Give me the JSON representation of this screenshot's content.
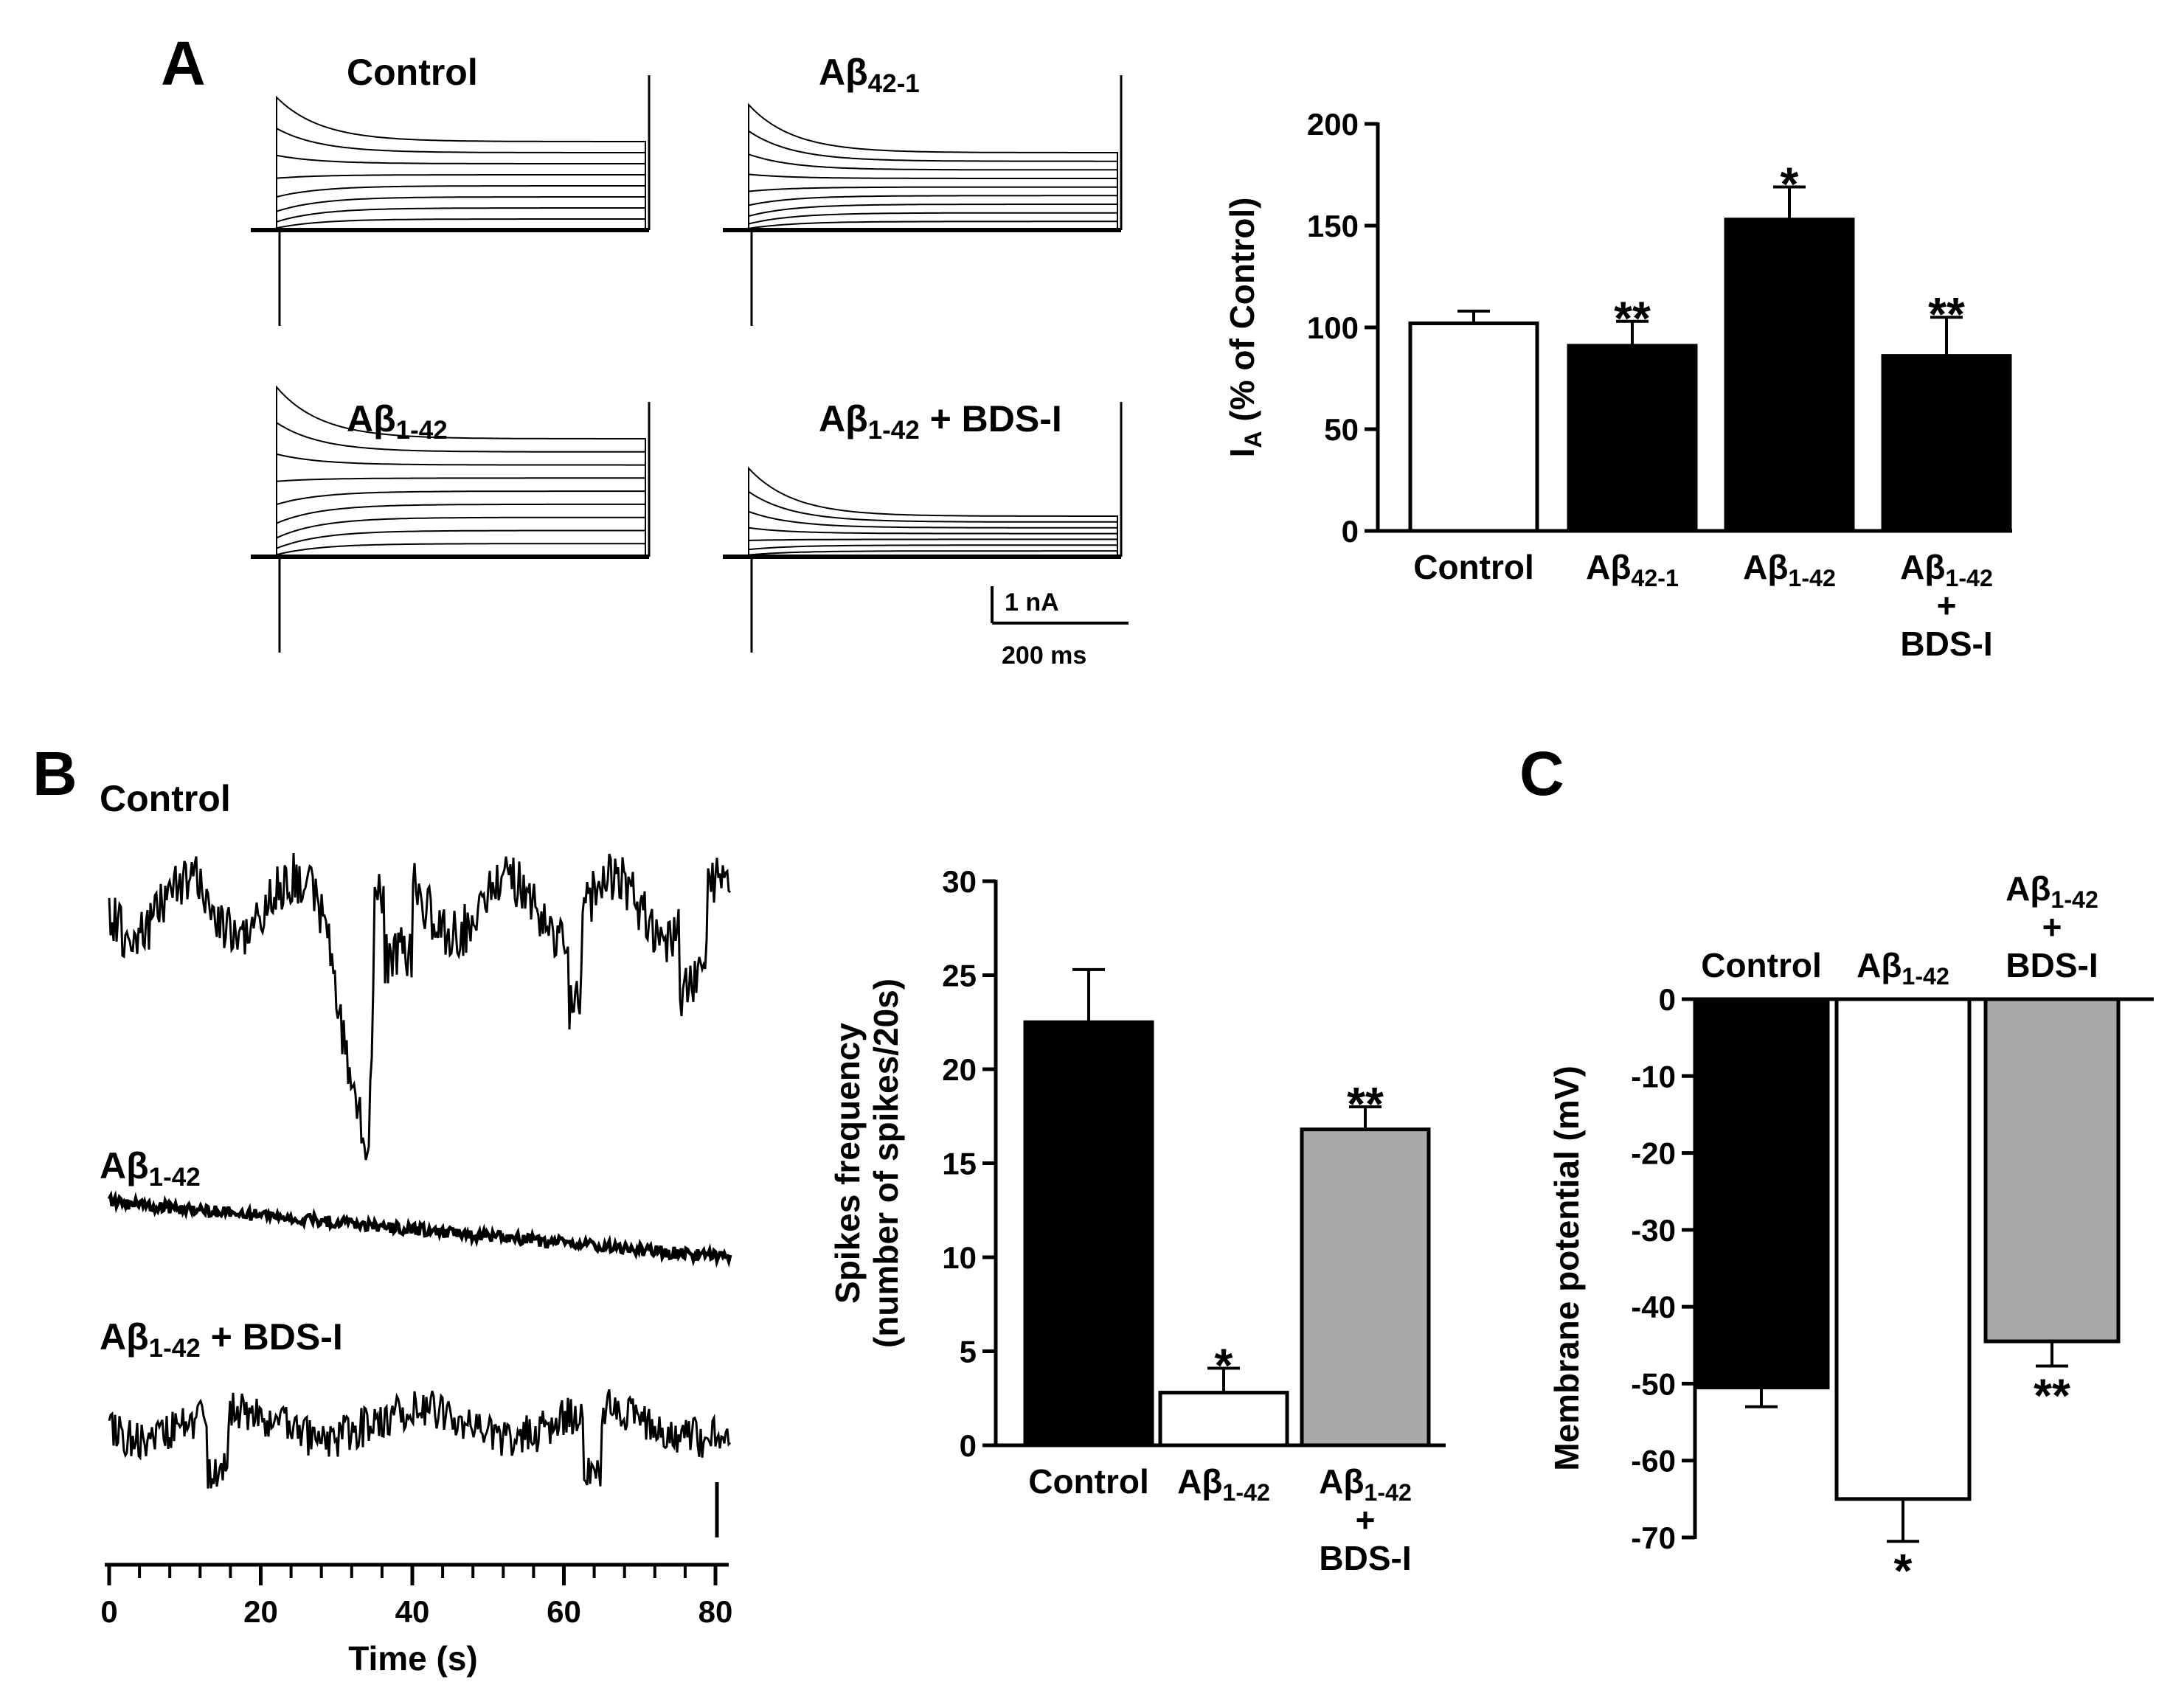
{
  "panel_labels": {
    "a": "A",
    "b": "B",
    "c": "C"
  },
  "colors": {
    "black_bar": "#000000",
    "white_bar": "#ffffff",
    "gray_bar": "#a9a9a9",
    "trace": "#000000"
  },
  "panel_a": {
    "traces": [
      {
        "base": "Control",
        "sub": "",
        "suffix": ""
      },
      {
        "base": "Aβ",
        "sub": "42-1",
        "suffix": ""
      },
      {
        "base": "Aβ",
        "sub": "1-42",
        "suffix": ""
      },
      {
        "base": "Aβ",
        "sub": "1-42",
        "suffix": " + BDS-I"
      }
    ],
    "scale_current": "1 nA",
    "scale_time": "200 ms"
  },
  "panel_b": {
    "traces": [
      {
        "base": "Control",
        "sub": "",
        "suffix": ""
      },
      {
        "base": "Aβ",
        "sub": "1-42",
        "suffix": ""
      },
      {
        "base": "Aβ",
        "sub": "1-42",
        "suffix": " + BDS-I"
      }
    ],
    "time_axis": {
      "label": "Time (s)",
      "ticks": [
        "0",
        "20",
        "40",
        "60",
        "80"
      ]
    }
  },
  "chart_data": [
    {
      "id": "IA",
      "type": "bar",
      "categories": [
        "Control",
        "Aβ42-1",
        "Aβ1-42",
        "Aβ1-42 + BDS-I"
      ],
      "category_labels": [
        [
          {
            "base": "Control",
            "sub": ""
          }
        ],
        [
          {
            "base": "Aβ",
            "sub": "42-1"
          }
        ],
        [
          {
            "base": "Aβ",
            "sub": "1-42"
          }
        ],
        [
          {
            "base": "Aβ",
            "sub": "1-42"
          },
          {
            "base": "+",
            "sub": ""
          },
          {
            "base": "BDS-I",
            "sub": ""
          }
        ]
      ],
      "values": [
        102,
        91,
        153,
        86
      ],
      "errors": [
        6,
        12,
        16,
        19
      ],
      "significance": [
        "",
        "**",
        "*",
        "**"
      ],
      "fills": [
        "#ffffff",
        "#000000",
        "#000000",
        "#000000"
      ],
      "ylabel": {
        "base": "I",
        "sub": "A",
        "rest": " (% of Control)"
      },
      "ylim": [
        0,
        200
      ],
      "yticks": [
        "0",
        "50",
        "100",
        "150",
        "200"
      ]
    },
    {
      "id": "spikes",
      "type": "bar",
      "categories": [
        "Control",
        "Aβ1-42",
        "Aβ1-42 + BDS-I"
      ],
      "category_labels": [
        [
          {
            "base": "Control",
            "sub": ""
          }
        ],
        [
          {
            "base": "Aβ",
            "sub": "1-42"
          }
        ],
        [
          {
            "base": "Aβ",
            "sub": "1-42"
          },
          {
            "base": "+",
            "sub": ""
          },
          {
            "base": "BDS-I",
            "sub": ""
          }
        ]
      ],
      "values": [
        22.5,
        2.8,
        16.8
      ],
      "errors": [
        2.8,
        1.3,
        1.2
      ],
      "significance": [
        "",
        "*",
        "**"
      ],
      "fills": [
        "#000000",
        "#ffffff",
        "#a9a9a9"
      ],
      "ylabel_lines": [
        "Spikes frequency",
        "(number of spikes/20s)"
      ],
      "ylim": [
        0,
        30
      ],
      "yticks": [
        "0",
        "5",
        "10",
        "15",
        "20",
        "25",
        "30"
      ]
    },
    {
      "id": "membrane",
      "type": "bar",
      "categories": [
        "Control",
        "Aβ1-42",
        "Aβ1-42 + BDS-I"
      ],
      "category_labels": [
        [
          {
            "base": "Control",
            "sub": ""
          }
        ],
        [
          {
            "base": "Aβ",
            "sub": "1-42"
          }
        ],
        [
          {
            "base": "Aβ",
            "sub": "1-42"
          },
          {
            "base": "+",
            "sub": ""
          },
          {
            "base": "BDS-I",
            "sub": ""
          }
        ]
      ],
      "values": [
        -50.5,
        -65,
        -44.5
      ],
      "errors": [
        2.5,
        5.5,
        3.2
      ],
      "significance": [
        "",
        "*",
        "**"
      ],
      "fills": [
        "#000000",
        "#ffffff",
        "#a9a9a9"
      ],
      "ylabel": "Membrane potential (mV)",
      "ylim": [
        -70,
        0
      ],
      "yticks": [
        "0",
        "-10",
        "-20",
        "-30",
        "-40",
        "-50",
        "-60",
        "-70"
      ]
    }
  ]
}
